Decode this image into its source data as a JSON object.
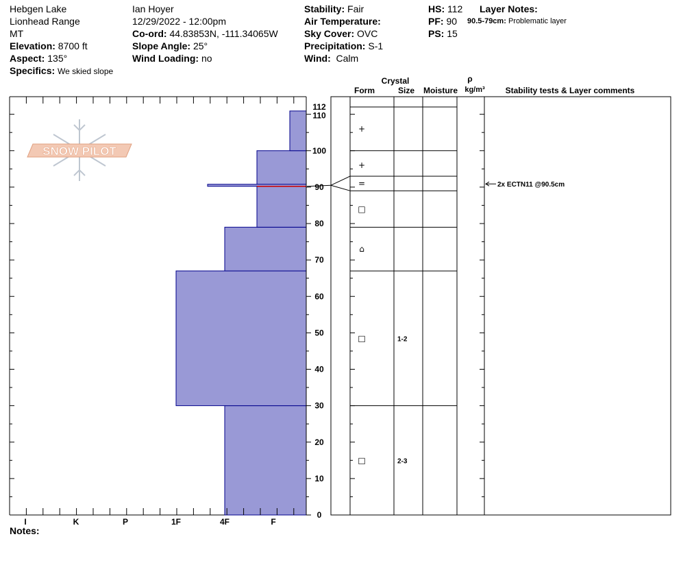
{
  "header": {
    "location": "Hebgen Lake",
    "range": "Lionhead Range",
    "state": "MT",
    "elevation_label": "Elevation:",
    "elevation_value": "8700 ft",
    "aspect_label": "Aspect:",
    "aspect_value": "135°",
    "specifics_label": "Specifics:",
    "specifics_value": "We skied slope",
    "observer": "Ian Hoyer",
    "datetime": "12/29/2022 - 12:00pm",
    "coord_label": "Co-ord:",
    "coord_value": "44.83853N, -111.34065W",
    "slope_label": "Slope Angle:",
    "slope_value": "25°",
    "windload_label": "Wind Loading:",
    "windload_value": "no",
    "stability_label": "Stability:",
    "stability_value": "Fair",
    "airtemp_label": "Air Temperature:",
    "airtemp_value": "",
    "sky_label": "Sky Cover:",
    "sky_value": "OVC",
    "precip_label": "Precipitation:",
    "precip_value": "S-1",
    "wind_label": "Wind:",
    "wind_value": "Calm",
    "hs_label": "HS:",
    "hs_value": "112",
    "pf_label": "PF:",
    "pf_value": "90",
    "ps_label": "PS:",
    "ps_value": "15",
    "layer_notes_label": "Layer Notes:",
    "layer_note_range": "90.5-79cm:",
    "layer_note_text": "Problematic layer"
  },
  "logo_text": "SNOW PILOT",
  "table_headers": {
    "crystal": "Crystal",
    "form": "Form",
    "size": "Size",
    "moisture": "Moisture",
    "rho": "ρ",
    "density_unit": "kg/m³",
    "comments": "Stability tests & Layer comments"
  },
  "notes_label": "Notes:",
  "colors": {
    "fill": "#9999d6",
    "edge": "#00008b",
    "weak_layer": "#cc0000"
  },
  "chart_data": {
    "type": "bar",
    "orientation": "horizontal-profile",
    "hardness_scale": [
      "I",
      "K",
      "P",
      "1F",
      "4F",
      "F"
    ],
    "yticks": [
      0,
      10,
      20,
      30,
      40,
      50,
      60,
      70,
      80,
      90,
      100,
      110,
      112
    ],
    "ylim": [
      0,
      112
    ],
    "layers": [
      {
        "bottom": 0,
        "top": 30,
        "hardness": "4F"
      },
      {
        "bottom": 30,
        "top": 67,
        "hardness": "1F"
      },
      {
        "bottom": 67,
        "top": 79,
        "hardness": "4F"
      },
      {
        "bottom": 79,
        "top": 100,
        "hardness": "4F-"
      },
      {
        "bottom": 100,
        "top": 112,
        "hardness": "F"
      }
    ],
    "thin_layer": {
      "depth": 90.5,
      "hardness": "1F"
    },
    "weak_layer_depth": 90.5,
    "layer_boundaries": [
      0,
      30,
      67,
      79,
      89,
      93,
      100,
      112
    ],
    "crystals": [
      {
        "height": 106,
        "symbol": "+",
        "size": ""
      },
      {
        "height": 96,
        "symbol": "+",
        "size": ""
      },
      {
        "height": 91,
        "symbol": "=",
        "size": ""
      },
      {
        "height": 84,
        "symbol": "□",
        "size": ""
      },
      {
        "height": 73,
        "symbol": "⌂",
        "size": ""
      },
      {
        "height": 48.5,
        "symbol": "□",
        "size": "1-2"
      },
      {
        "height": 15,
        "symbol": "□",
        "size": "2-3"
      }
    ],
    "tests": [
      {
        "height": 90.5,
        "text": "2x ECTN11 @90.5cm"
      }
    ]
  }
}
